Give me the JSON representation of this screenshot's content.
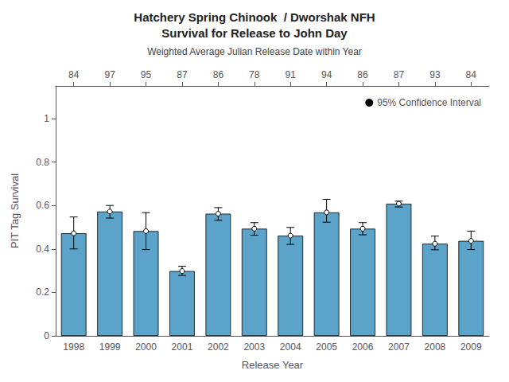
{
  "chart_data": {
    "type": "bar",
    "title": "Hatchery Spring Chinook  / Dworshak NFH\nSurvival for Release to John Day",
    "subtitle": "Weighted Average Julian Release Date within Year",
    "xlabel": "Release Year",
    "ylabel": "PIT Tag Survival",
    "categories": [
      "1998",
      "1999",
      "2000",
      "2001",
      "2002",
      "2003",
      "2004",
      "2005",
      "2006",
      "2007",
      "2008",
      "2009"
    ],
    "top_categories": [
      84,
      97,
      95,
      87,
      86,
      78,
      91,
      94,
      86,
      87,
      93,
      84
    ],
    "values": [
      0.472,
      0.572,
      0.482,
      0.298,
      0.562,
      0.493,
      0.461,
      0.568,
      0.493,
      0.608,
      0.424,
      0.437
    ],
    "error_lower": [
      0.072,
      0.03,
      0.085,
      0.02,
      0.03,
      0.03,
      0.04,
      0.045,
      0.028,
      0.015,
      0.028,
      0.04
    ],
    "error_upper": [
      0.075,
      0.028,
      0.085,
      0.022,
      0.028,
      0.028,
      0.038,
      0.06,
      0.028,
      0.012,
      0.035,
      0.045
    ],
    "error_label": "95% Confidence Interval",
    "color": "#5ba3c9",
    "ylim": [
      0,
      1.15
    ],
    "yticks": [
      0,
      0.2,
      0.4,
      0.6,
      0.8,
      1
    ],
    "grid": false,
    "legend": "upper right"
  }
}
